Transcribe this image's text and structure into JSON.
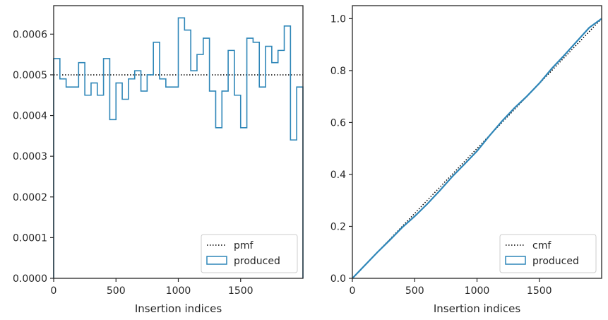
{
  "chart_data": [
    {
      "type": "histogram-step",
      "xlabel": "Insertion indices",
      "ylabel": "",
      "xlim": [
        0,
        2000
      ],
      "ylim": [
        0,
        0.00067
      ],
      "xticks": [
        0,
        500,
        1000,
        1500
      ],
      "xtick_labels": [
        "0",
        "500",
        "1000",
        "1500"
      ],
      "yticks": [
        0,
        0.0001,
        0.0002,
        0.0003,
        0.0004,
        0.0005,
        0.0006
      ],
      "ytick_labels": [
        "0.0000",
        "0.0001",
        "0.0002",
        "0.0003",
        "0.0004",
        "0.0005",
        "0.0006"
      ],
      "grid": false,
      "legend_position": "lower-right",
      "reference": {
        "name": "pmf",
        "style": "dotted",
        "color": "#000000",
        "value": 0.0005
      },
      "produced": {
        "name": "produced",
        "color": "#2e86b8",
        "bin_edges": [
          0,
          50,
          100,
          150,
          200,
          250,
          300,
          350,
          400,
          450,
          500,
          550,
          600,
          650,
          700,
          750,
          800,
          850,
          900,
          950,
          1000,
          1050,
          1100,
          1150,
          1200,
          1250,
          1300,
          1350,
          1400,
          1450,
          1500,
          1550,
          1600,
          1650,
          1700,
          1750,
          1800,
          1850,
          1900,
          1950,
          2000
        ],
        "values": [
          0.00054,
          0.00049,
          0.00047,
          0.00047,
          0.00053,
          0.00045,
          0.00048,
          0.00045,
          0.00054,
          0.00039,
          0.00048,
          0.00044,
          0.00049,
          0.00051,
          0.00046,
          0.0005,
          0.00058,
          0.00049,
          0.00047,
          0.00047,
          0.00064,
          0.00061,
          0.00051,
          0.00055,
          0.00059,
          0.00046,
          0.00037,
          0.00046,
          0.00056,
          0.00045,
          0.00037,
          0.00059,
          0.00058,
          0.00047,
          0.00057,
          0.00053,
          0.00056,
          0.00062,
          0.00034,
          0.00047
        ]
      }
    },
    {
      "type": "line",
      "xlabel": "Insertion indices",
      "ylabel": "",
      "xlim": [
        0,
        2000
      ],
      "ylim": [
        0,
        1.05
      ],
      "xticks": [
        0,
        500,
        1000,
        1500
      ],
      "xtick_labels": [
        "0",
        "500",
        "1000",
        "1500"
      ],
      "yticks": [
        0,
        0.2,
        0.4,
        0.6,
        0.8,
        1.0
      ],
      "ytick_labels": [
        "0.0",
        "0.2",
        "0.4",
        "0.6",
        "0.8",
        "1.0"
      ],
      "grid": false,
      "legend_position": "lower-right",
      "reference": {
        "name": "cmf",
        "style": "dotted",
        "color": "#000000",
        "x": [
          0,
          2000
        ],
        "y": [
          0,
          1.0
        ]
      },
      "produced": {
        "name": "produced",
        "color": "#2e86b8",
        "x": [
          0,
          100,
          200,
          300,
          400,
          500,
          600,
          700,
          800,
          900,
          1000,
          1100,
          1200,
          1300,
          1400,
          1500,
          1600,
          1700,
          1800,
          1900,
          2000
        ],
        "y": [
          0,
          0.05,
          0.1,
          0.147,
          0.196,
          0.239,
          0.286,
          0.337,
          0.391,
          0.44,
          0.49,
          0.549,
          0.605,
          0.656,
          0.701,
          0.751,
          0.808,
          0.859,
          0.912,
          0.965,
          1.0
        ]
      }
    }
  ]
}
